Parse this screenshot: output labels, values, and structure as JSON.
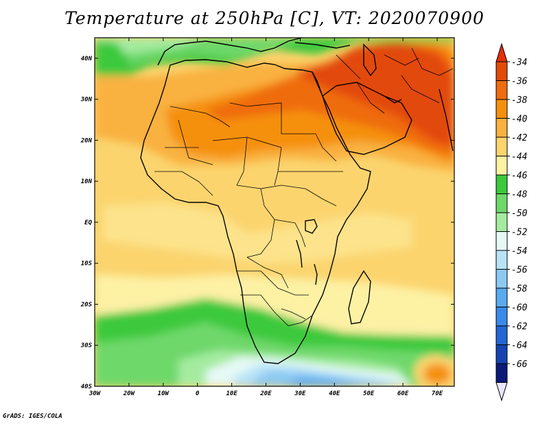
{
  "title": "Temperature at 250hPa [C], VT: 2020070900",
  "footer": "GrADS: IGES/COLA",
  "map": {
    "lat_labels": [
      "40N",
      "30N",
      "20N",
      "10N",
      "EQ",
      "10S",
      "20S",
      "30S",
      "40S"
    ],
    "lon_labels": [
      "30W",
      "20W",
      "10W",
      "0",
      "10E",
      "20E",
      "30E",
      "40E",
      "50E",
      "60E",
      "70E"
    ],
    "lat_range": [
      -40,
      45
    ],
    "lon_range": [
      -30,
      75
    ]
  },
  "colorbar": {
    "labels": [
      "-34",
      "-36",
      "-38",
      "-40",
      "-42",
      "-44",
      "-46",
      "-48",
      "-50",
      "-52",
      "-54",
      "-56",
      "-58",
      "-60",
      "-62",
      "-64",
      "-66"
    ],
    "colors": [
      "#e24a0a",
      "#ef6c10",
      "#f5900f",
      "#f9b140",
      "#fbd46e",
      "#fdf1a4",
      "#3cc93c",
      "#6ed86b",
      "#a4eba0",
      "#e6f9f5",
      "#b8e3f7",
      "#8cc9f2",
      "#5aaaf0",
      "#3a8ae8",
      "#2466d4",
      "#1643b1",
      "#0b1a78"
    ],
    "over_color": "#e2300a",
    "under_color": "#eae6ff"
  }
}
